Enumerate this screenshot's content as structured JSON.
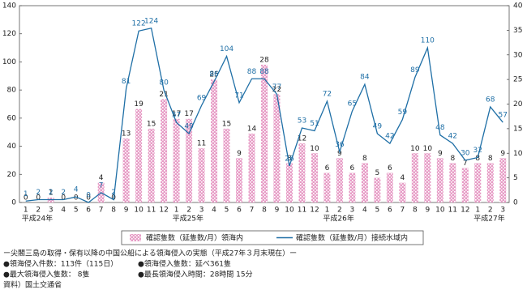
{
  "chart_data": {
    "type": "combo",
    "categories": [
      "1",
      "2",
      "3",
      "4",
      "5",
      "6",
      "7",
      "8",
      "9",
      "10",
      "11",
      "12",
      "1",
      "2",
      "3",
      "4",
      "5",
      "6",
      "7",
      "8",
      "9",
      "10",
      "11",
      "12",
      "1",
      "2",
      "3",
      "4",
      "5",
      "6",
      "7",
      "8",
      "9",
      "10",
      "11",
      "12",
      "1",
      "2",
      "3"
    ],
    "year_labels": [
      {
        "at": 0,
        "label": "平成24年"
      },
      {
        "at": 12,
        "label": "平成25年"
      },
      {
        "at": 24,
        "label": "平成26年"
      },
      {
        "at": 36,
        "label": "平成27年"
      }
    ],
    "series": [
      {
        "name": "確認隻数（延隻数/月）領海内",
        "type": "bar",
        "axis": "y2",
        "color": "#e79cc6",
        "values": [
          0,
          0,
          1,
          0,
          0,
          0,
          4,
          0,
          13,
          19,
          15,
          21,
          17,
          17,
          11,
          25,
          15,
          9,
          14,
          28,
          22,
          8,
          12,
          10,
          6,
          9,
          6,
          8,
          5,
          6,
          4,
          10,
          10,
          9,
          8,
          7,
          8,
          8,
          9
        ]
      },
      {
        "name": "確認隻数（延隻数/月）接続水域内",
        "type": "line",
        "color": "#1f6fa6",
        "values": [
          1,
          2,
          2,
          2,
          4,
          0,
          7,
          2,
          81,
          122,
          124,
          80,
          57,
          49,
          69,
          86,
          104,
          71,
          88,
          88,
          77,
          26,
          53,
          51,
          72,
          36,
          65,
          84,
          49,
          42,
          59,
          89,
          110,
          48,
          42,
          30,
          32,
          68,
          57
        ]
      }
    ],
    "ylim": [
      0,
      140
    ],
    "yticks": [
      0,
      20,
      40,
      60,
      80,
      100,
      120,
      140
    ],
    "y2lim": [
      0,
      40
    ],
    "y2ticks": [
      0,
      5,
      10,
      15,
      20,
      25,
      30,
      35,
      40
    ],
    "legend": "bottom"
  },
  "notes": {
    "title": "ー尖閣三島の取得・保有以降の中国公船による領海侵入の実態（平成27年３月末現在）ー",
    "items": [
      "●領海侵入件数：113件（115日）",
      "●領海侵入隻数：延べ361隻",
      "●最大領海侵入隻数： 8隻",
      "●最長領海侵入時間：28時間 15分"
    ],
    "source": "資料）国土交通省"
  }
}
